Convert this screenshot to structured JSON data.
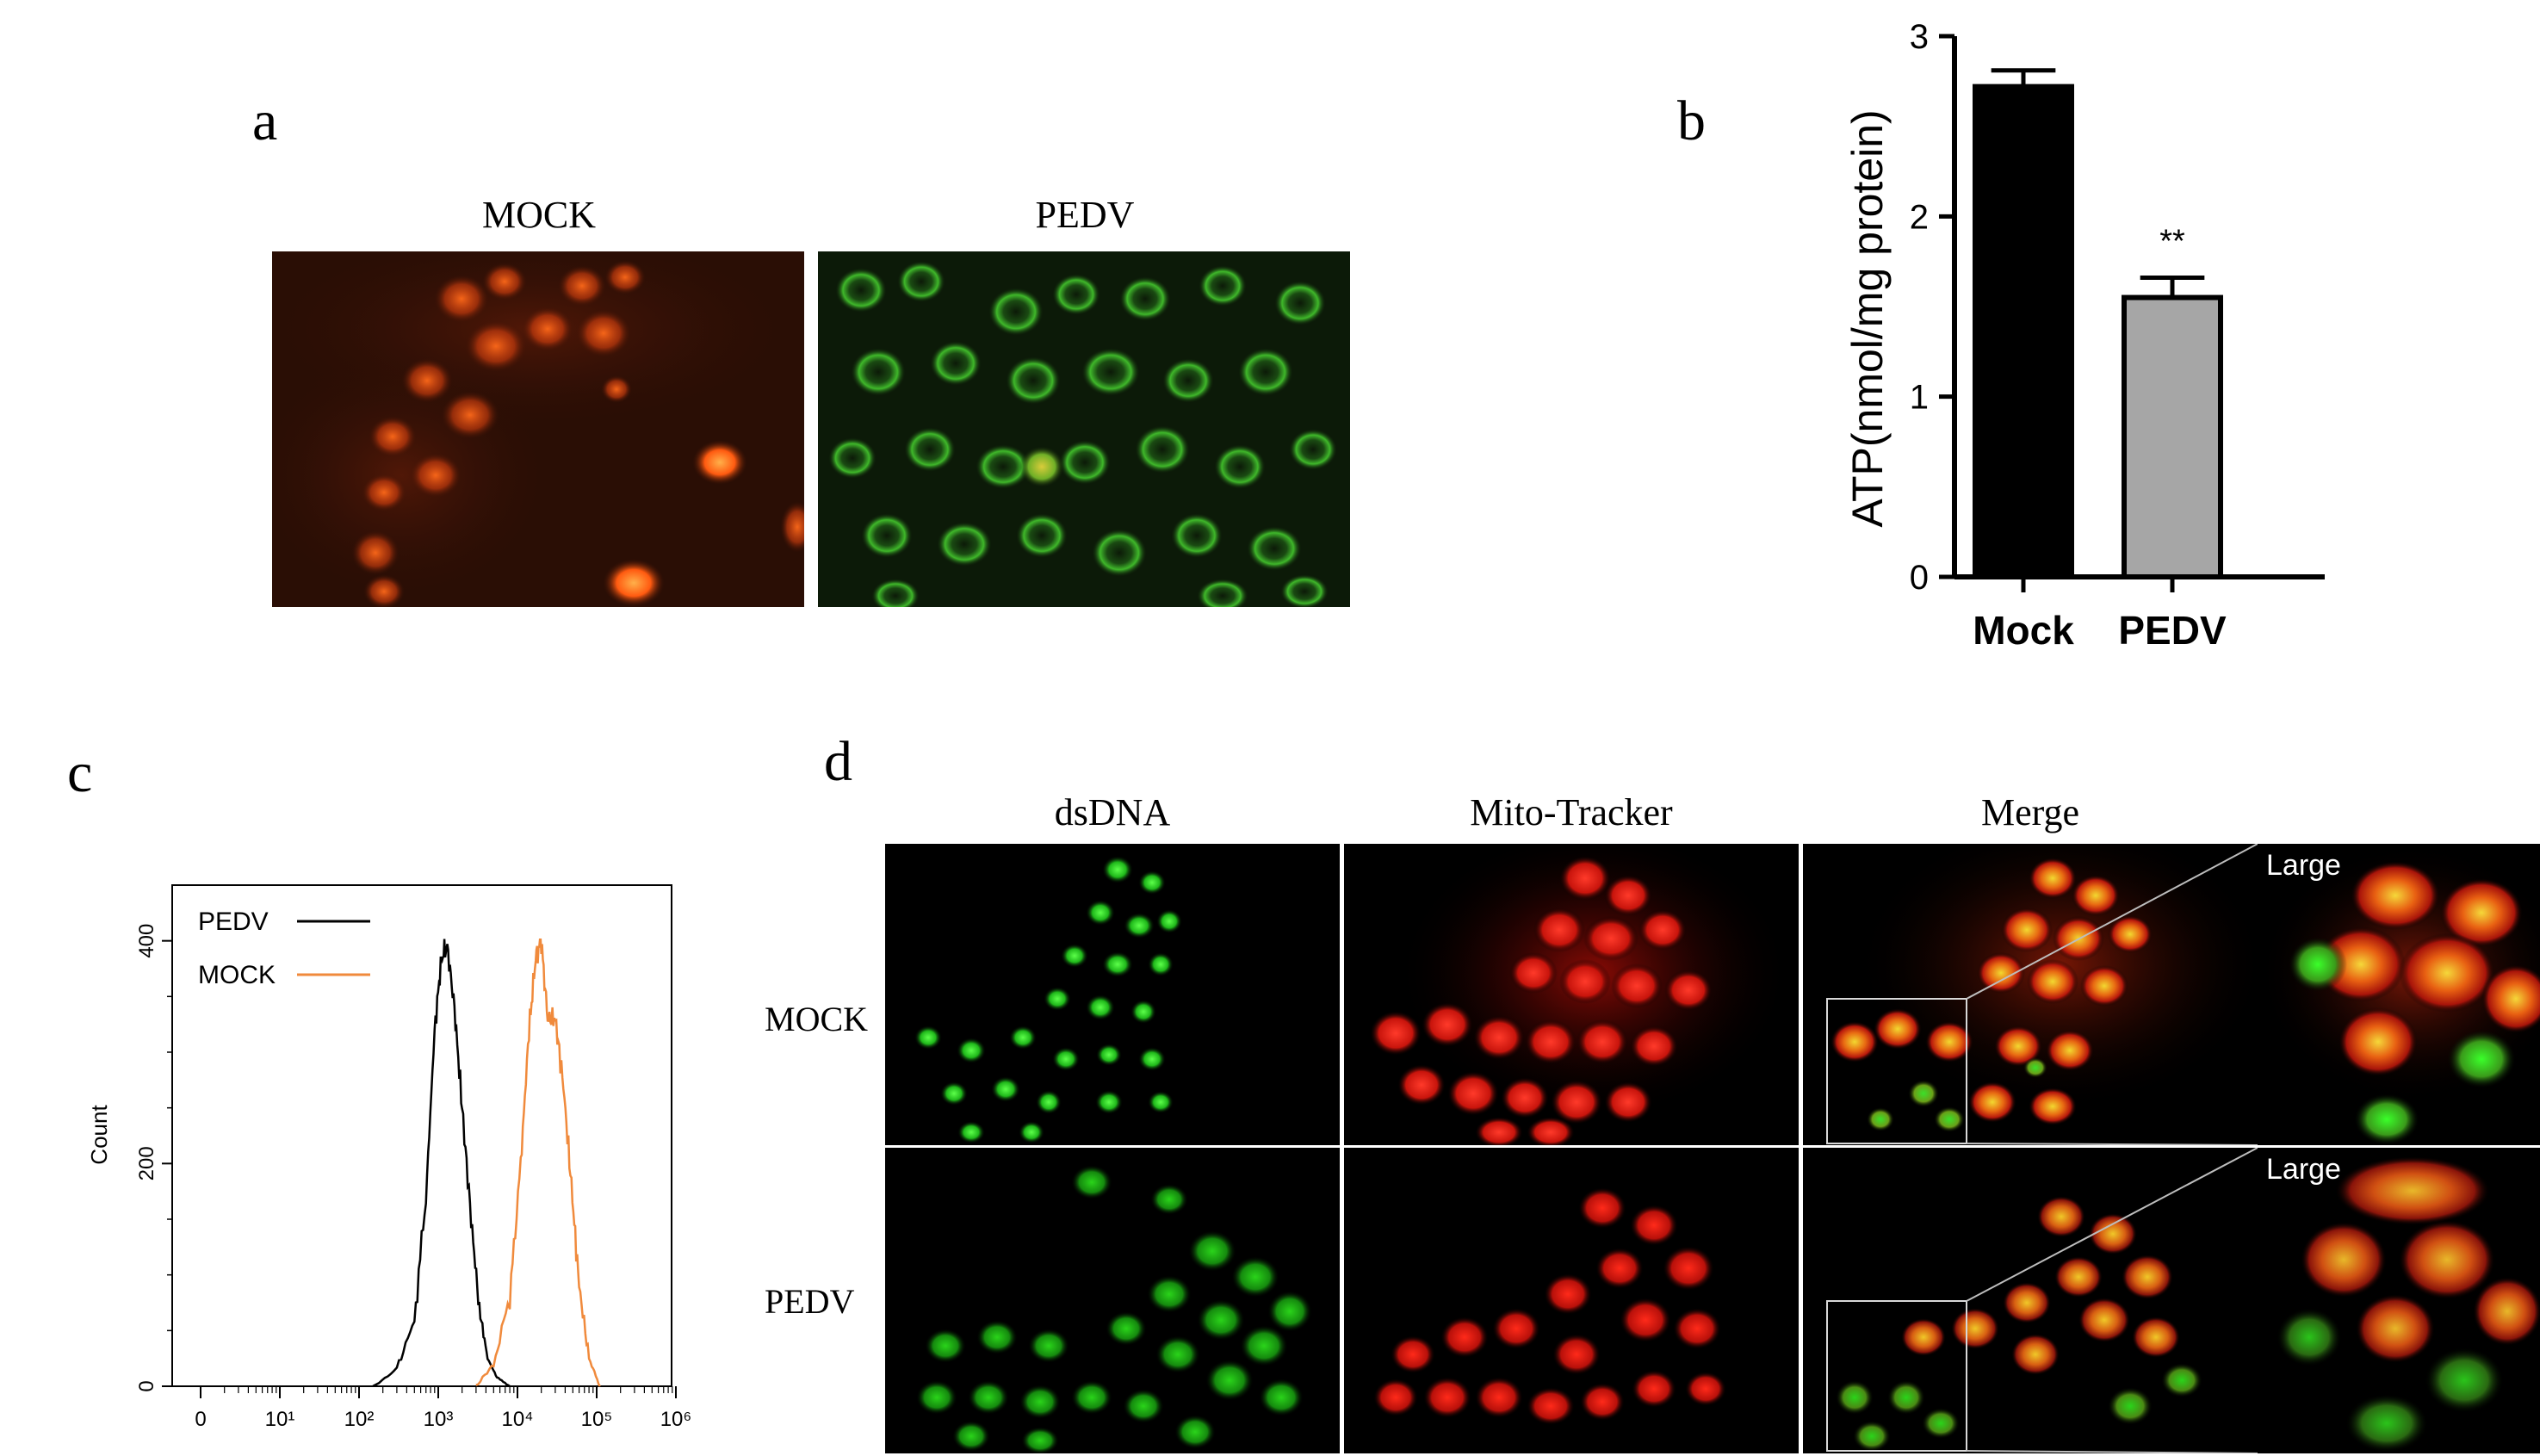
{
  "panels": {
    "a": {
      "letter": "a",
      "titles": [
        "MOCK",
        "PEDV"
      ]
    },
    "b": {
      "letter": "b",
      "chart_data": {
        "type": "bar",
        "categories": [
          "Mock",
          "PEDV"
        ],
        "values": [
          2.72,
          1.55
        ],
        "errors": [
          0.09,
          0.11
        ],
        "colors": [
          "#000000",
          "#a6a6a6"
        ],
        "ylabel": "ATP(nmol/mg protein)",
        "ylim": [
          0,
          3
        ],
        "yticks": [
          "0",
          "1",
          "2",
          "3"
        ],
        "annotations": [
          {
            "category": "PEDV",
            "text": "**"
          }
        ]
      }
    },
    "c": {
      "letter": "c",
      "chart_data": {
        "type": "line",
        "xscale": "log",
        "xticks": [
          "0",
          "10¹",
          "10²",
          "10³",
          "10⁴",
          "10⁵",
          "10⁶"
        ],
        "yticks": [
          "0",
          "200",
          "400"
        ],
        "ylabel": "Count",
        "ylim": [
          0,
          450
        ],
        "legend": {
          "placement": "top-left",
          "entries": [
            "PEDV",
            "MOCK"
          ]
        },
        "series": [
          {
            "name": "PEDV",
            "color": "#000000",
            "x": [
              150,
              300,
              500,
              700,
              900,
              1100,
              1300,
              1600,
              2000,
              2600,
              3300,
              4200,
              5500,
              8000
            ],
            "y": [
              0,
              15,
              60,
              170,
              320,
              385,
              395,
              340,
              250,
              150,
              70,
              25,
              8,
              0
            ]
          },
          {
            "name": "MOCK",
            "color": "#f08a3c",
            "x": [
              3000,
              5000,
              8000,
              11000,
              14000,
              17000,
              20000,
              24000,
              30000,
              38000,
              48000,
              60000,
              80000,
              110000
            ],
            "y": [
              0,
              20,
              80,
              200,
              320,
              385,
              400,
              330,
              330,
              270,
              180,
              90,
              25,
              0
            ]
          }
        ]
      }
    },
    "d": {
      "letter": "d",
      "column_titles": [
        "dsDNA",
        "Mito-Tracker",
        "Merge"
      ],
      "row_labels": [
        "MOCK",
        "PEDV"
      ],
      "large_label": "Large"
    }
  }
}
